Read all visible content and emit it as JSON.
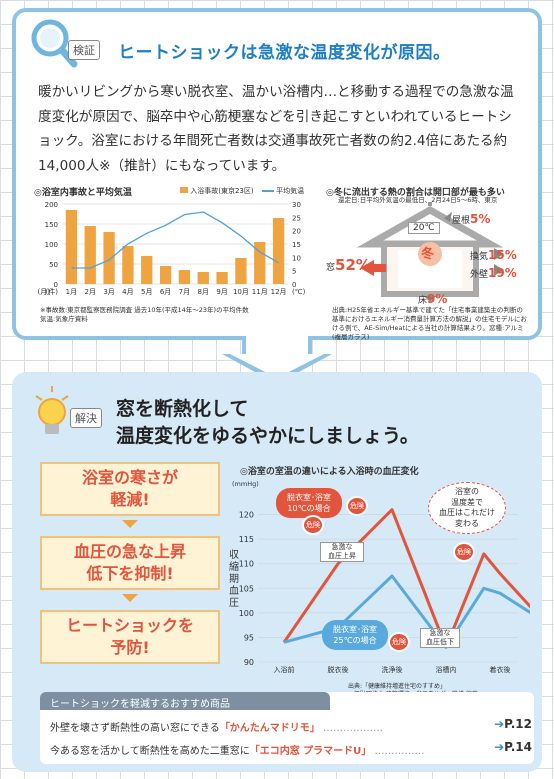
{
  "section1": {
    "badge": "検証",
    "title": "ヒートショックは急激な温度変化が原因。",
    "body": "暖かいリビングから寒い脱衣室、温かい浴槽内…と移動する過程での急激な温度変化が原因で、脳卒中や心筋梗塞などを引き起こすといわれているヒートショック。浴室における年間死亡者数は交通事故死亡者数の約2.4倍にあたる約14,000人※（推計）にもなっています。",
    "chart_title": "◎浴室内事故と平均気温",
    "legend_bar": "入浴事故(東京23区)",
    "legend_line": "平均気温",
    "note": "※事故数:東京都監察医務院調査 過去10年(平成14年〜23年)の平均件数\n気温:気象庁資料",
    "house_title": "◎冬に流出する熱の割合は開口部が最も多い",
    "house_sub": "還定日:日平均外気温の最低日、2月24日5〜6時、東京",
    "house_temp": "20℃",
    "house_season": "冬",
    "house_note": "出典:H25年省エネルギー基準で建てた「住宅事業建築主の判断の基準におけるエネルギー消費量計算方法の解説」の住宅モデルにおける例で、AE-Sim/Heatによる当社の計算結果より。窓種:アルミ(複層ガラス)",
    "heat": [
      {
        "label": "屋根",
        "value": "5%"
      },
      {
        "label": "換気",
        "value": "15%"
      },
      {
        "label": "外壁",
        "value": "19%"
      },
      {
        "label": "窓",
        "value": "52%"
      },
      {
        "label": "床",
        "value": "9%"
      }
    ]
  },
  "section2": {
    "badge": "解決",
    "title_line1": "窓を断熱化して",
    "title_line2": "温度変化をゆるやかにしましょう。",
    "points": [
      "浴室の寒さが\n軽減!",
      "血圧の急な上昇\n低下を抑制!",
      "ヒートショックを\n予防!"
    ],
    "chart_title": "◎浴室の室温の違いによる入浴時の血圧変化",
    "unit": "(mmHg)",
    "ylabel": "収縮期血圧",
    "label_cold": "脱衣室･浴室\n10℃の場合",
    "label_warm": "脱衣室･浴室\n25℃の場合",
    "bubble": "浴室の\n温度差で\n血圧はこれだけ\n変わる",
    "danger": "危険",
    "ann_up": "急激な\n血圧上昇",
    "ann_down": "急激な\n血圧低下",
    "source": "出典:「健康維持増進住宅のすすめ」\n一般財団法人 建築環境・省エネルギー機構 編著\n九州大学 坂野裕氏",
    "reco_header": "ヒートショックを軽減するおすすめ商品",
    "reco": [
      {
        "text": "外壁を壊さず断熱性の高い窓にできる",
        "product": "「かんたんマドリモ」",
        "page": "P.12"
      },
      {
        "text": "今ある窓を活かして断熱性を高めた二重窓に",
        "product": "「エコ内窓 プラマードU」",
        "page": "P.14"
      }
    ]
  },
  "chart_data": [
    {
      "type": "bar",
      "categories": [
        "1月",
        "2月",
        "3月",
        "4月",
        "5月",
        "6月",
        "7月",
        "8月",
        "9月",
        "10月",
        "11月",
        "12月"
      ],
      "series": [
        {
          "name": "入浴事故(東京23区)",
          "type": "bar",
          "values": [
            185,
            145,
            130,
            95,
            70,
            45,
            35,
            30,
            30,
            65,
            105,
            165
          ]
        },
        {
          "name": "平均気温",
          "type": "line",
          "values": [
            6,
            6,
            9,
            15,
            19,
            22,
            26,
            27,
            23,
            18,
            12,
            8
          ]
        }
      ],
      "xlabel": "(月)",
      "ylabel": "(件)",
      "ylabel_right": "(℃)",
      "ylim": [
        0,
        200
      ],
      "y2lim": [
        0,
        30
      ],
      "yticks": [
        0,
        50,
        100,
        150,
        200
      ],
      "y2ticks": [
        0,
        5,
        10,
        15,
        20,
        25,
        30
      ]
    },
    {
      "type": "line",
      "categories": [
        "入浴前",
        "脱衣後",
        "洗浄後",
        "浴槽内",
        "着衣後"
      ],
      "x": [
        0,
        1,
        2,
        3,
        3.7,
        4,
        5
      ],
      "series": [
        {
          "name": "脱衣室･浴室 10℃の場合",
          "values": [
            94,
            110,
            121,
            93,
            112,
            108,
            96
          ]
        },
        {
          "name": "脱衣室･浴室 25℃の場合",
          "values": [
            94,
            97,
            107.5,
            93,
            105,
            104,
            97
          ]
        }
      ],
      "ylabel": "収縮期血圧",
      "unit": "(mmHg)",
      "ylim": [
        90,
        125
      ],
      "yticks": [
        90,
        95,
        100,
        105,
        110,
        115,
        120
      ]
    }
  ]
}
